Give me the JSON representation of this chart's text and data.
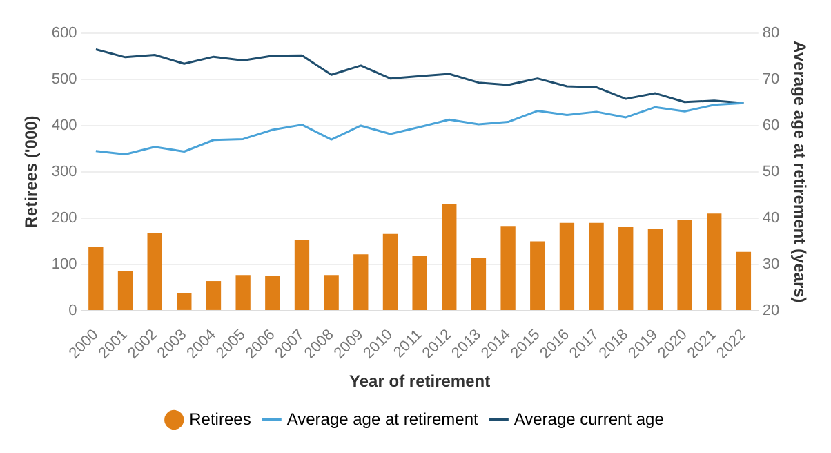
{
  "chart_data": {
    "type": "bar",
    "categories": [
      "2000",
      "2001",
      "2002",
      "2003",
      "2004",
      "2005",
      "2006",
      "2007",
      "2008",
      "2009",
      "2010",
      "2011",
      "2012",
      "2013",
      "2014",
      "2015",
      "2016",
      "2017",
      "2018",
      "2019",
      "2020",
      "2021",
      "2022"
    ],
    "xlabel": "Year of retirement",
    "ylabel": "Retirees ('000)",
    "y2label": "Average age at retirement (years)",
    "series": [
      {
        "name": "Retirees",
        "color": "#e07f16",
        "values": [
          138,
          85,
          168,
          38,
          64,
          77,
          75,
          152,
          77,
          122,
          166,
          119,
          230,
          114,
          183,
          150,
          190,
          190,
          182,
          176,
          197,
          210,
          127
        ]
      },
      {
        "name": "Average age at retirement",
        "type": "line",
        "axis": "y2",
        "color": "#4aa3d8",
        "values": [
          54.5,
          53.8,
          55.4,
          54.4,
          56.9,
          57.1,
          59.1,
          60.2,
          57,
          60,
          58.2,
          59.7,
          61.3,
          60.3,
          60.8,
          63.2,
          62.3,
          63,
          61.8,
          64,
          63.1,
          64.5,
          64.9
        ]
      },
      {
        "name": "Average current age",
        "type": "line",
        "axis": "y2",
        "color": "#1f4e6e",
        "values": [
          76.5,
          74.8,
          75.3,
          73.4,
          74.9,
          74.1,
          75.1,
          75.2,
          71,
          73,
          70.2,
          70.7,
          71.2,
          69.3,
          68.8,
          70.2,
          68.5,
          68.3,
          65.8,
          67,
          65.1,
          65.4,
          64.9
        ]
      }
    ],
    "ylim": [
      0,
      600
    ],
    "yticks": [
      0,
      100,
      200,
      300,
      400,
      500,
      600
    ],
    "y2lim": [
      20,
      80
    ],
    "y2ticks": [
      20,
      30,
      40,
      50,
      60,
      70,
      80
    ],
    "grid": "y",
    "legend": "bottom",
    "marker": "none"
  }
}
